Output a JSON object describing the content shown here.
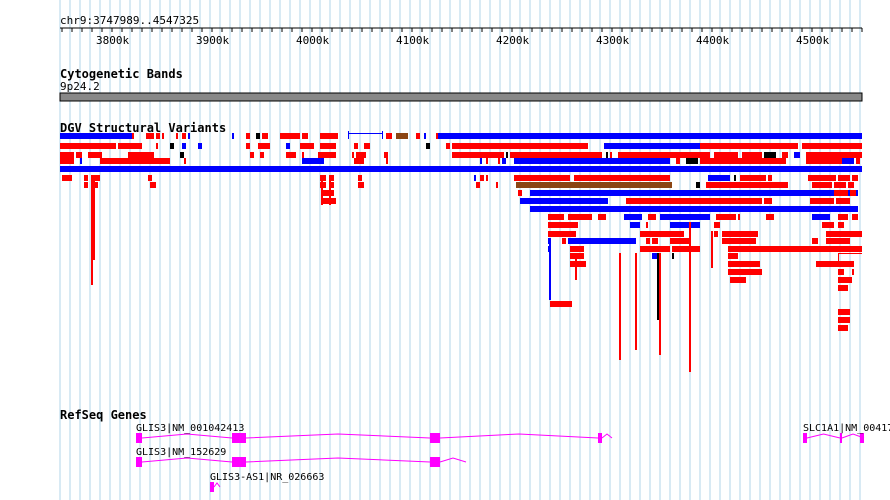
{
  "coordinates": "chr9:3747989..4547325",
  "ruler": {
    "ticks": [
      "3800k",
      "3900k",
      "4000k",
      "4100k",
      "4200k",
      "4300k",
      "4400k",
      "4500k"
    ]
  },
  "tracks": {
    "cytoband_title": "Cytogenetic Bands",
    "cytoband_name": "9p24.2",
    "dgv_title": "DGV Structural Variants",
    "refseq_title": "RefSeq Genes"
  },
  "genes": [
    "GLIS3|NM_001042413",
    "GLIS3|NM_152629",
    "GLIS3-AS1|NR_026663",
    "SLC1A1|NM_00417"
  ],
  "colors": {
    "grid": "#b0d4e8",
    "loss": "#ff0000",
    "gain": "#0000ff",
    "complex": "#8b4513",
    "gene": "#ff00ff",
    "cytoband": "#888888"
  }
}
